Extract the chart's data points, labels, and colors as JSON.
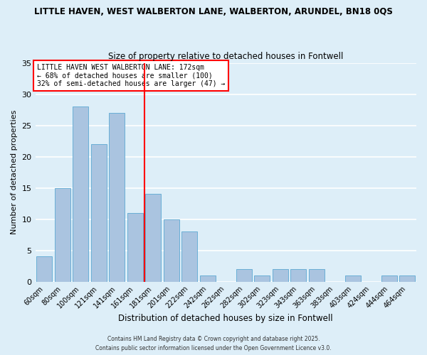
{
  "title_line1": "LITTLE HAVEN, WEST WALBERTON LANE, WALBERTON, ARUNDEL, BN18 0QS",
  "title_line2": "Size of property relative to detached houses in Fontwell",
  "xlabel": "Distribution of detached houses by size in Fontwell",
  "ylabel": "Number of detached properties",
  "bar_labels": [
    "60sqm",
    "80sqm",
    "100sqm",
    "121sqm",
    "141sqm",
    "161sqm",
    "181sqm",
    "201sqm",
    "222sqm",
    "242sqm",
    "262sqm",
    "282sqm",
    "302sqm",
    "323sqm",
    "343sqm",
    "363sqm",
    "383sqm",
    "403sqm",
    "424sqm",
    "444sqm",
    "464sqm"
  ],
  "bar_values": [
    4,
    15,
    28,
    22,
    27,
    11,
    14,
    10,
    8,
    1,
    0,
    2,
    1,
    2,
    2,
    2,
    0,
    1,
    0,
    1,
    1
  ],
  "bar_color": "#aac4e0",
  "bar_edge_color": "#6aafd6",
  "background_color": "#ddeef8",
  "grid_color": "#ffffff",
  "ref_line_x": 6.0,
  "ref_line_color": "red",
  "ylim": [
    0,
    35
  ],
  "yticks": [
    0,
    5,
    10,
    15,
    20,
    25,
    30,
    35
  ],
  "annotation_text": "LITTLE HAVEN WEST WALBERTON LANE: 172sqm\n← 68% of detached houses are smaller (100)\n32% of semi-detached houses are larger (47) →",
  "footer_line1": "Contains HM Land Registry data © Crown copyright and database right 2025.",
  "footer_line2": "Contains public sector information licensed under the Open Government Licence v3.0."
}
